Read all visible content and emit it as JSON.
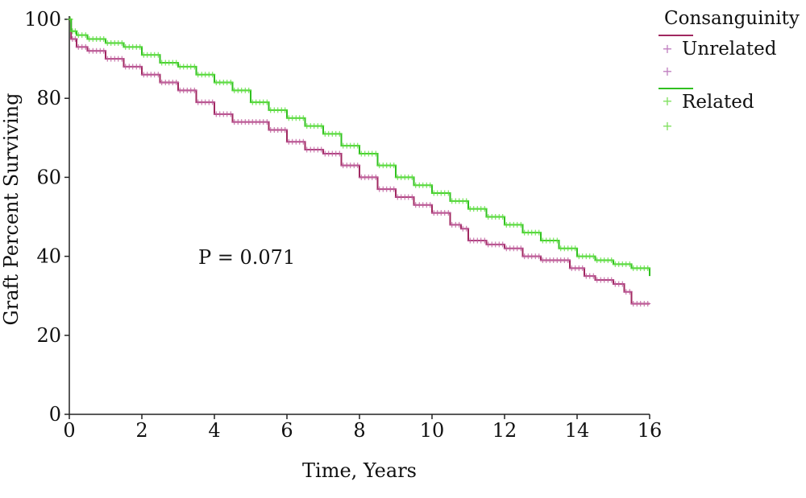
{
  "chart_data": {
    "type": "line",
    "title": "",
    "xlabel": "Time, Years",
    "ylabel": "Graft Percent Surviving",
    "xlim": [
      0,
      16
    ],
    "ylim": [
      0,
      100
    ],
    "xticks": [
      0,
      2,
      4,
      6,
      8,
      10,
      12,
      14,
      16
    ],
    "yticks": [
      0,
      20,
      40,
      60,
      80,
      100
    ],
    "grid": false,
    "legend": {
      "title": "Consanguinity",
      "placement": "top-right",
      "entries": [
        "Unrelated",
        "Related"
      ]
    },
    "annotation": "P = 0.071",
    "series": [
      {
        "name": "Unrelated",
        "color": "#a02860",
        "censor_color": "#c060a0",
        "x": [
          0,
          0.05,
          0.2,
          0.5,
          1.0,
          1.5,
          2.0,
          2.5,
          3.0,
          3.5,
          4.0,
          4.5,
          5.0,
          5.5,
          6.0,
          6.5,
          7.0,
          7.5,
          8.0,
          8.5,
          9.0,
          9.5,
          10.0,
          10.5,
          10.8,
          11.0,
          11.5,
          12.0,
          12.5,
          13.0,
          13.5,
          13.8,
          14.2,
          14.5,
          15.0,
          15.3,
          15.5,
          16.0
        ],
        "y": [
          100,
          95,
          93,
          92,
          90,
          88,
          86,
          84,
          82,
          79,
          76,
          74,
          74,
          72,
          69,
          67,
          66,
          63,
          60,
          57,
          55,
          53,
          51,
          48,
          47,
          44,
          43,
          42,
          40,
          39,
          39,
          37,
          35,
          34,
          33,
          31,
          28,
          28
        ]
      },
      {
        "name": "Related",
        "color": "#30c020",
        "censor_color": "#60e040",
        "x": [
          0,
          0.05,
          0.2,
          0.5,
          1.0,
          1.5,
          2.0,
          2.5,
          3.0,
          3.5,
          4.0,
          4.5,
          5.0,
          5.5,
          6.0,
          6.5,
          7.0,
          7.5,
          8.0,
          8.5,
          9.0,
          9.5,
          10.0,
          10.5,
          11.0,
          11.5,
          12.0,
          12.5,
          13.0,
          13.5,
          14.0,
          14.5,
          15.0,
          15.5,
          16.0
        ],
        "y": [
          100,
          97,
          96,
          95,
          94,
          93,
          91,
          89,
          88,
          86,
          84,
          82,
          79,
          77,
          75,
          73,
          71,
          68,
          66,
          63,
          60,
          58,
          56,
          54,
          52,
          50,
          48,
          46,
          44,
          42,
          40,
          39,
          38,
          37,
          35
        ]
      }
    ]
  }
}
